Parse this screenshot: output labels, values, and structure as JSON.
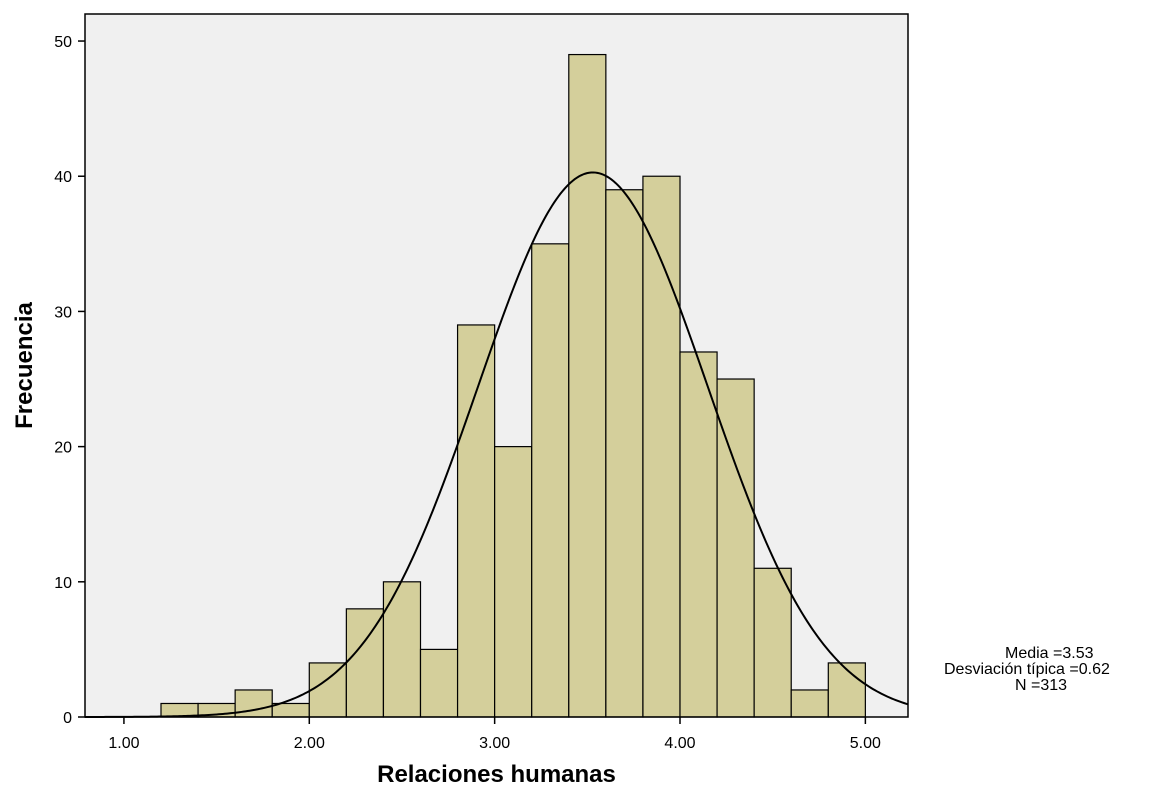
{
  "chart_data": {
    "type": "bar",
    "subtype": "histogram",
    "xlabel": "Relaciones humanas",
    "ylabel": "Frecuencia",
    "xlim": [
      0.79,
      5.23
    ],
    "ylim": [
      0,
      52
    ],
    "x_ticks": [
      1.0,
      2.0,
      3.0,
      4.0,
      5.0
    ],
    "x_tick_labels": [
      "1.00",
      "2.00",
      "3.00",
      "4.00",
      "5.00"
    ],
    "y_ticks": [
      0,
      10,
      20,
      30,
      40,
      50
    ],
    "y_tick_labels": [
      "0",
      "10",
      "20",
      "30",
      "40",
      "50"
    ],
    "bin_width": 0.2,
    "bins": [
      {
        "x0": 1.2,
        "x1": 1.4,
        "count": 1
      },
      {
        "x0": 1.4,
        "x1": 1.6,
        "count": 1
      },
      {
        "x0": 1.6,
        "x1": 1.8,
        "count": 2
      },
      {
        "x0": 1.8,
        "x1": 2.0,
        "count": 1
      },
      {
        "x0": 2.0,
        "x1": 2.2,
        "count": 4
      },
      {
        "x0": 2.2,
        "x1": 2.4,
        "count": 8
      },
      {
        "x0": 2.4,
        "x1": 2.6,
        "count": 10
      },
      {
        "x0": 2.6,
        "x1": 2.8,
        "count": 5
      },
      {
        "x0": 2.8,
        "x1": 3.0,
        "count": 29
      },
      {
        "x0": 3.0,
        "x1": 3.2,
        "count": 20
      },
      {
        "x0": 3.2,
        "x1": 3.4,
        "count": 35
      },
      {
        "x0": 3.4,
        "x1": 3.6,
        "count": 49
      },
      {
        "x0": 3.6,
        "x1": 3.8,
        "count": 39
      },
      {
        "x0": 3.8,
        "x1": 4.0,
        "count": 40
      },
      {
        "x0": 4.0,
        "x1": 4.2,
        "count": 27
      },
      {
        "x0": 4.2,
        "x1": 4.4,
        "count": 25
      },
      {
        "x0": 4.4,
        "x1": 4.6,
        "count": 11
      },
      {
        "x0": 4.6,
        "x1": 4.8,
        "count": 2
      },
      {
        "x0": 4.8,
        "x1": 5.0,
        "count": 4
      }
    ],
    "normal_curve": {
      "mean": 3.53,
      "sd": 0.62,
      "n": 313
    },
    "stats_text": [
      "Media =3.53",
      "Desviación típica =0.62",
      "N =313"
    ],
    "colors": {
      "bar_fill": "#d4cf9b",
      "plot_background": "#f0f0f0",
      "outline": "#000000"
    },
    "grid": false,
    "legend": "none"
  }
}
